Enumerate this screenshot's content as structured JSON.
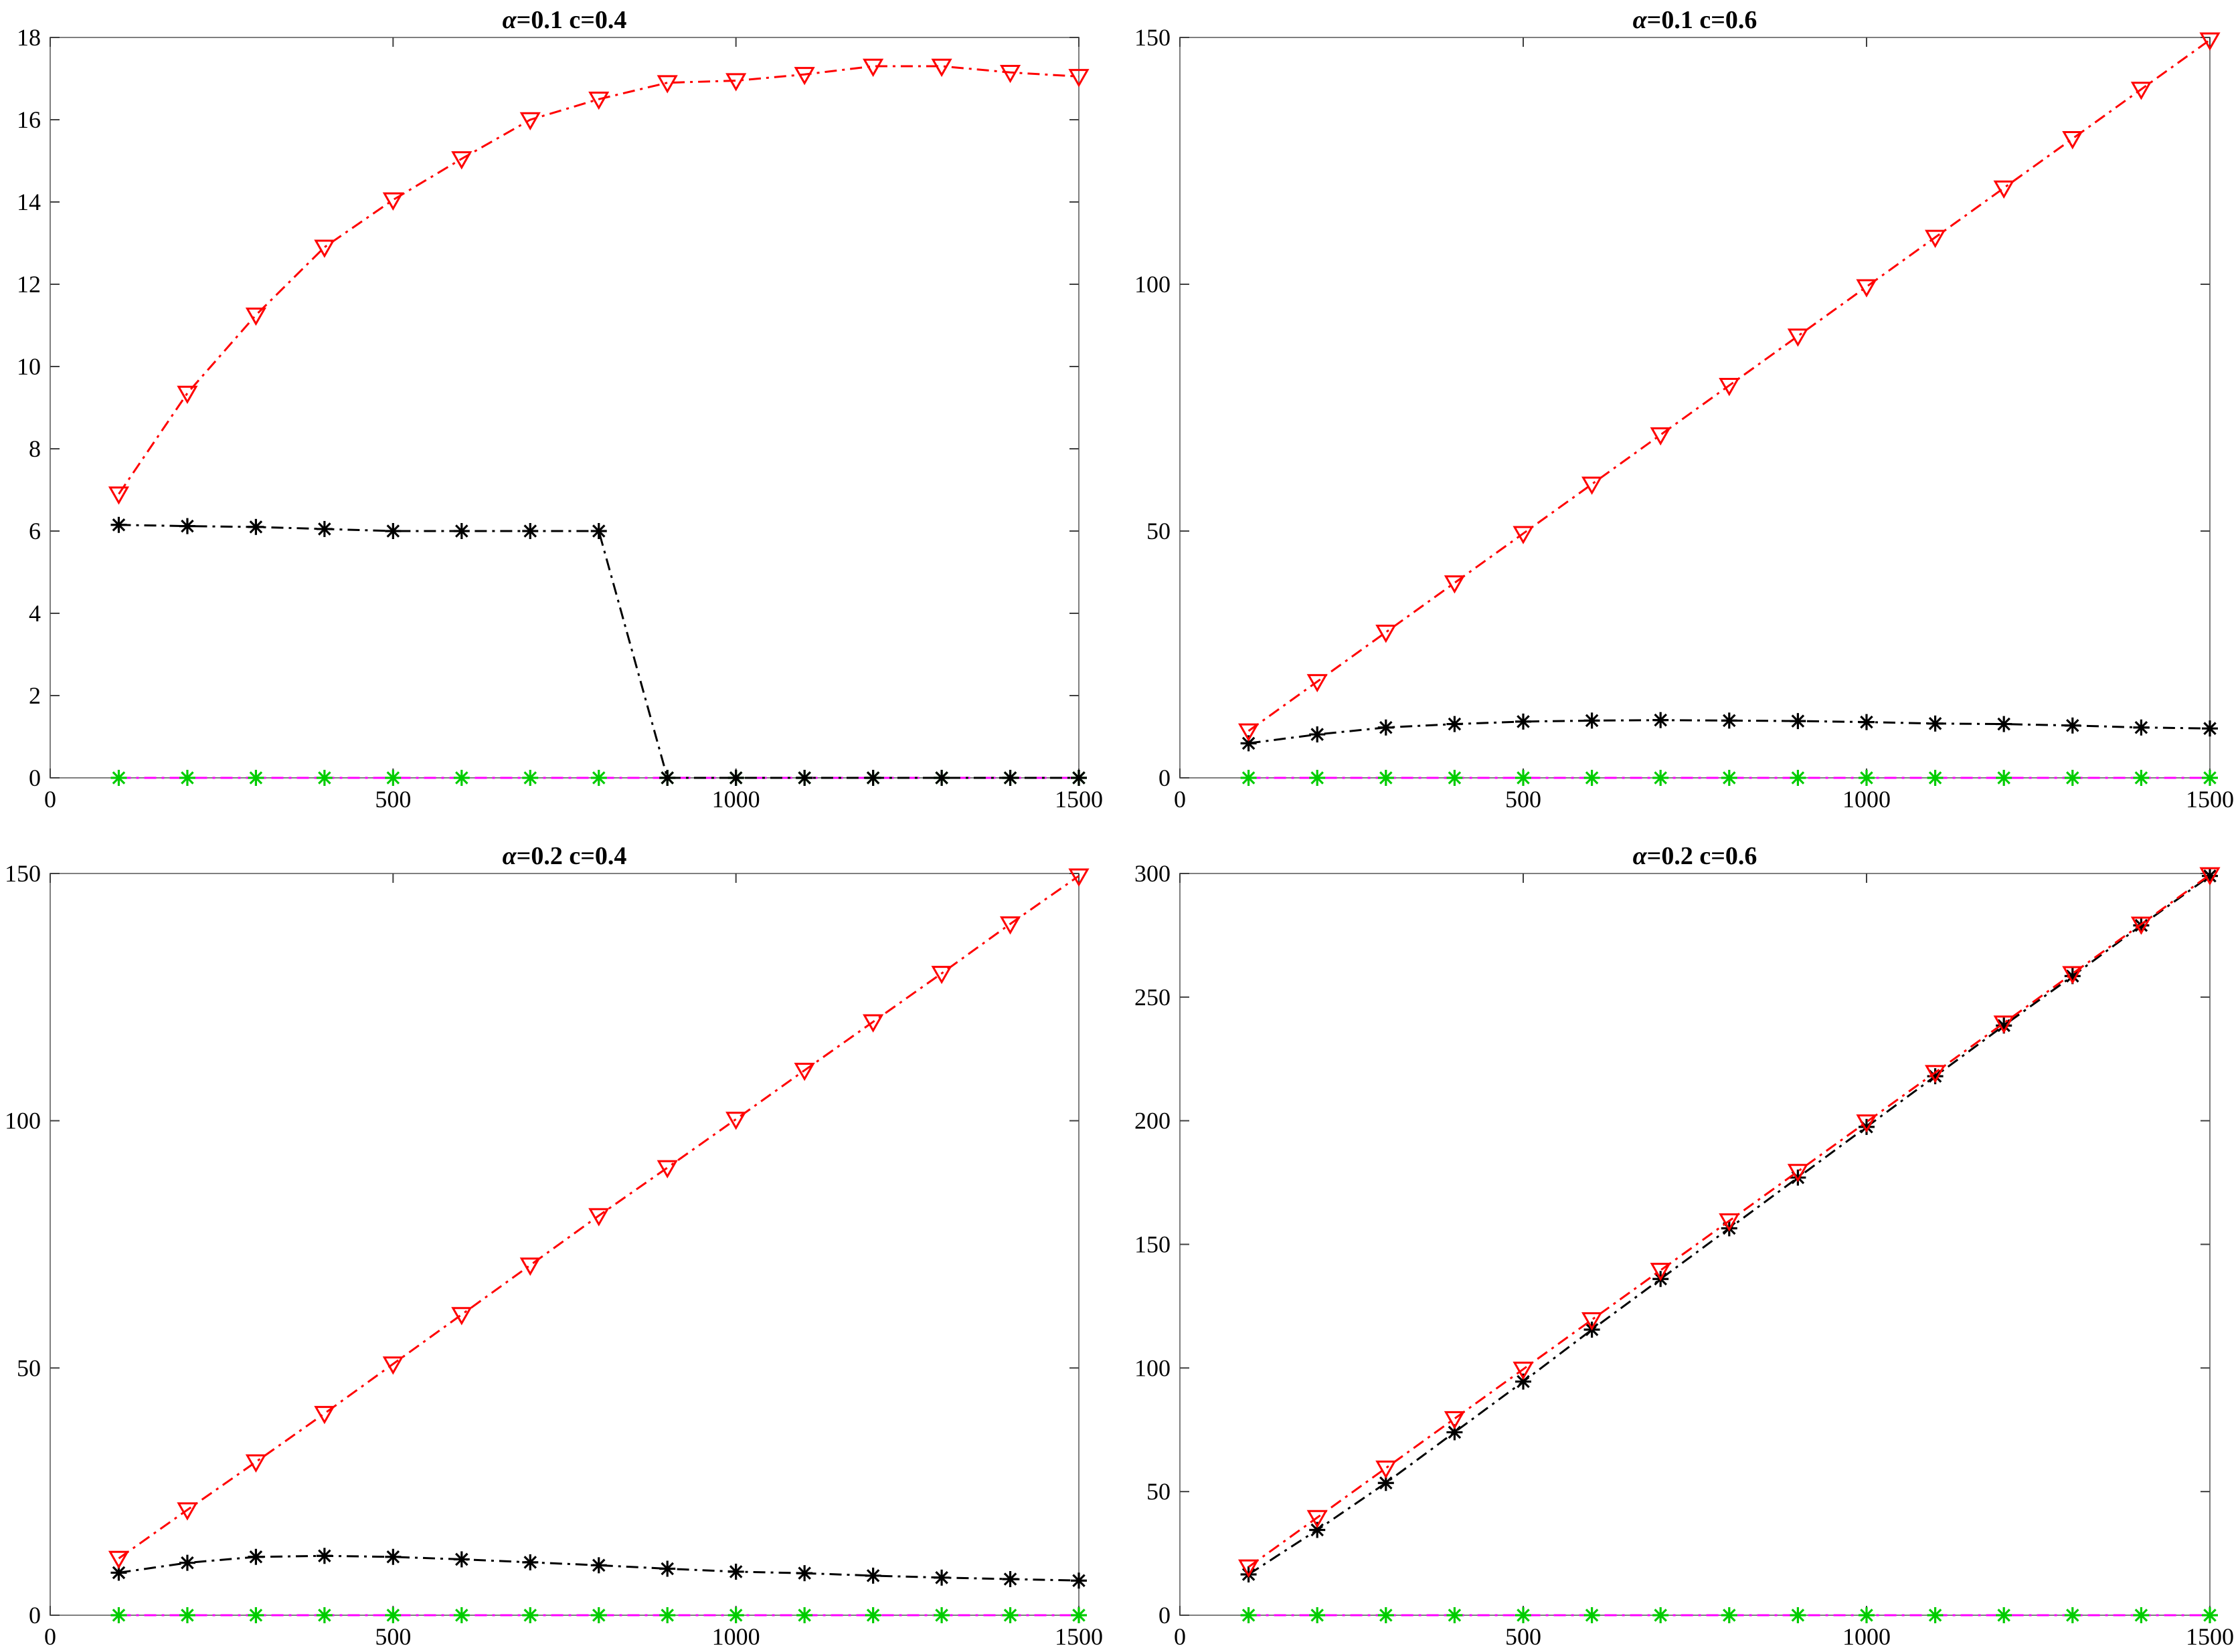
{
  "figure": {
    "colors": {
      "background": "#ffffff",
      "axes": "#7f7f7f",
      "red_series": "#ff0000",
      "black_series": "#000000",
      "magenta_series": "#ff00ff",
      "green_marker": "#00cc00"
    }
  },
  "chart_data": [
    {
      "type": "line",
      "title": "α=0.1 c=0.4",
      "title_parts": {
        "greek": "α",
        "rest": "=0.1 c=0.4"
      },
      "xlabel": "",
      "ylabel": "",
      "xlim": [
        0,
        1500
      ],
      "ylim": [
        0,
        18
      ],
      "xticks": [
        0,
        500,
        1000,
        1500
      ],
      "yticks": [
        0,
        2,
        4,
        6,
        8,
        10,
        12,
        14,
        16,
        18
      ],
      "x": [
        100,
        200,
        300,
        400,
        500,
        600,
        700,
        800,
        900,
        1000,
        1100,
        1200,
        1300,
        1400,
        1500
      ],
      "series": [
        {
          "marker": "triangle-down",
          "color": "#ff0000",
          "line": "dash-dot",
          "values": [
            6.9,
            9.35,
            11.25,
            12.9,
            14.05,
            15.05,
            16.0,
            16.5,
            16.9,
            16.95,
            17.1,
            17.3,
            17.3,
            17.15,
            17.05
          ]
        },
        {
          "marker": "asterisk",
          "color": "#000000",
          "line": "dash-dot",
          "values": [
            6.15,
            6.12,
            6.1,
            6.05,
            6.0,
            6.0,
            6.0,
            6.0,
            0,
            0,
            0,
            0,
            0,
            0,
            0
          ]
        },
        {
          "marker": "asterisk",
          "color": "#00cc00",
          "line": "dash-dot",
          "line_color": "#ff00ff",
          "values": [
            0,
            0,
            0,
            0,
            0,
            0,
            0,
            0,
            0,
            0,
            0,
            0,
            0,
            0,
            0
          ]
        }
      ],
      "grid": false
    },
    {
      "type": "line",
      "title": "α=0.1 c=0.6",
      "title_parts": {
        "greek": "α",
        "rest": "=0.1 c=0.6"
      },
      "xlabel": "",
      "ylabel": "",
      "xlim": [
        0,
        1500
      ],
      "ylim": [
        0,
        150
      ],
      "xticks": [
        0,
        500,
        1000,
        1500
      ],
      "yticks": [
        0,
        50,
        100,
        150
      ],
      "x": [
        100,
        200,
        300,
        400,
        500,
        600,
        700,
        800,
        900,
        1000,
        1100,
        1200,
        1300,
        1400,
        1500
      ],
      "series": [
        {
          "marker": "triangle-down",
          "color": "#ff0000",
          "line": "dash-dot",
          "values": [
            9.5,
            19.5,
            29.5,
            39.5,
            49.5,
            59.5,
            69.5,
            79.5,
            89.5,
            99.5,
            109.5,
            119.5,
            129.5,
            139.5,
            149.5
          ]
        },
        {
          "marker": "asterisk",
          "color": "#000000",
          "line": "dash-dot",
          "values": [
            7.0,
            8.8,
            10.2,
            10.9,
            11.4,
            11.6,
            11.7,
            11.6,
            11.5,
            11.3,
            11.0,
            10.9,
            10.6,
            10.2,
            10.0
          ]
        },
        {
          "marker": "asterisk",
          "color": "#00cc00",
          "line": "dash-dot",
          "line_color": "#ff00ff",
          "values": [
            0,
            0,
            0,
            0,
            0,
            0,
            0,
            0,
            0,
            0,
            0,
            0,
            0,
            0,
            0
          ]
        }
      ],
      "grid": false
    },
    {
      "type": "line",
      "title": "α=0.2 c=0.4",
      "title_parts": {
        "greek": "α",
        "rest": "=0.2 c=0.4"
      },
      "xlabel": "",
      "ylabel": "",
      "xlim": [
        0,
        1500
      ],
      "ylim": [
        0,
        150
      ],
      "xticks": [
        0,
        500,
        1000,
        1500
      ],
      "yticks": [
        0,
        50,
        100,
        150
      ],
      "x": [
        100,
        200,
        300,
        400,
        500,
        600,
        700,
        800,
        900,
        1000,
        1100,
        1200,
        1300,
        1400,
        1500
      ],
      "series": [
        {
          "marker": "triangle-down",
          "color": "#ff0000",
          "line": "dash-dot",
          "values": [
            11.5,
            21.3,
            31.0,
            40.8,
            50.8,
            60.8,
            70.8,
            80.8,
            90.5,
            100.3,
            110.2,
            120.0,
            129.8,
            139.8,
            149.5
          ]
        },
        {
          "marker": "asterisk",
          "color": "#000000",
          "line": "dash-dot",
          "values": [
            8.6,
            10.6,
            11.8,
            12.0,
            11.8,
            11.3,
            10.7,
            10.1,
            9.4,
            8.8,
            8.5,
            8.0,
            7.6,
            7.3,
            7.0
          ]
        },
        {
          "marker": "asterisk",
          "color": "#00cc00",
          "line": "dash-dot",
          "line_color": "#ff00ff",
          "values": [
            0,
            0,
            0,
            0,
            0,
            0,
            0,
            0,
            0,
            0,
            0,
            0,
            0,
            0,
            0
          ]
        }
      ],
      "grid": false
    },
    {
      "type": "line",
      "title": "α=0.2 c=0.6",
      "title_parts": {
        "greek": "α",
        "rest": "=0.2 c=0.6"
      },
      "xlabel": "",
      "ylabel": "",
      "xlim": [
        0,
        1500
      ],
      "ylim": [
        0,
        300
      ],
      "xticks": [
        0,
        500,
        1000,
        1500
      ],
      "yticks": [
        0,
        50,
        100,
        150,
        200,
        250,
        300
      ],
      "x": [
        100,
        200,
        300,
        400,
        500,
        600,
        700,
        800,
        900,
        1000,
        1100,
        1200,
        1300,
        1400,
        1500
      ],
      "series": [
        {
          "marker": "triangle-down",
          "color": "#ff0000",
          "line": "dash-dot",
          "values": [
            19.5,
            39.5,
            59.5,
            79.5,
            99.5,
            119.5,
            139.5,
            159.5,
            179.5,
            199.5,
            219.5,
            239.5,
            259.5,
            279.5,
            299.5
          ]
        },
        {
          "marker": "asterisk",
          "color": "#000000",
          "line": "dash-dot",
          "values": [
            16.5,
            34.5,
            53.5,
            74.0,
            94.5,
            115.5,
            136.0,
            156.5,
            177.0,
            197.5,
            218.0,
            238.5,
            258.5,
            279.0,
            299.0
          ]
        },
        {
          "marker": "asterisk",
          "color": "#00cc00",
          "line": "dash-dot",
          "line_color": "#ff00ff",
          "values": [
            0,
            0,
            0,
            0,
            0,
            0,
            0,
            0,
            0,
            0,
            0,
            0,
            0,
            0,
            0
          ]
        }
      ],
      "grid": false
    }
  ]
}
